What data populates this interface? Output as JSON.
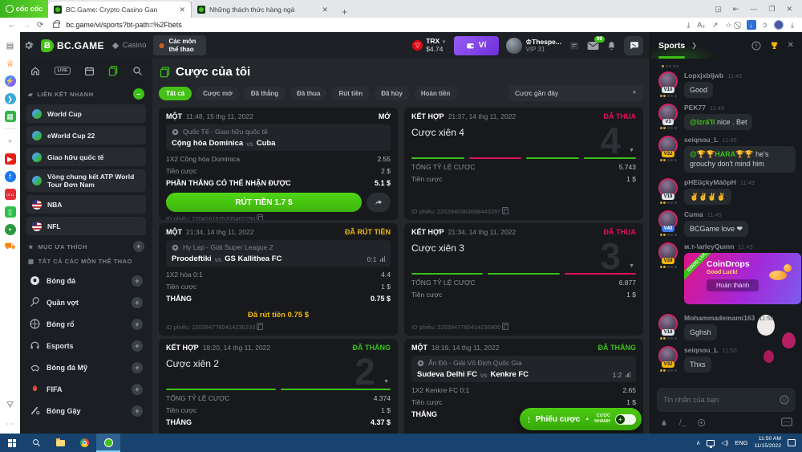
{
  "browser": {
    "brand": "cốc cốc",
    "tabs": [
      {
        "title": "BC.Game: Crypto Casino Gan"
      },
      {
        "title": "Những thách thức hàng ngà"
      }
    ],
    "url": "bc.game/vi/sports?bt-path=%2Fbets"
  },
  "header": {
    "logo": "BC.GAME",
    "nav_casino": "Casino",
    "nav_sports": "Các môn thể thao",
    "currency": "TRX",
    "balance": "$4.74",
    "wallet": "Ví",
    "username": "Thespe...",
    "vip": "VIP 31",
    "mail_badge": "99"
  },
  "sidebar": {
    "live_label": "LIVE",
    "quick_title": "LIÊN KẾT NHANH",
    "quick_links": [
      {
        "label": "World Cup"
      },
      {
        "label": "eWorld Cup 22"
      },
      {
        "label": "Giao hữu quốc tế"
      },
      {
        "label": "Vòng chung kết ATP World Tour Đơn Nam"
      },
      {
        "label": "NBA"
      },
      {
        "label": "NFL"
      }
    ],
    "favorites_title": "MỤC ƯA THÍCH",
    "all_sports_title": "TẤT CẢ CÁC MÔN THỂ THAO",
    "sports": [
      {
        "label": "Bóng đá"
      },
      {
        "label": "Quần vợt"
      },
      {
        "label": "Bóng rổ"
      },
      {
        "label": "Esports"
      },
      {
        "label": "Bóng đá Mỹ"
      },
      {
        "label": "FIFA"
      },
      {
        "label": "Bóng Gậy"
      }
    ]
  },
  "main": {
    "title": "Cược của tôi",
    "filters": [
      "Tất cả",
      "Cược mở",
      "Đã thắng",
      "Đã thua",
      "Rút tiền",
      "Đã hủy",
      "Hoàn tiền"
    ],
    "sort": "Cược gần đây",
    "cards": [
      {
        "type": "MỘT",
        "time": "11:48, 15 thg 11, 2022",
        "status": "MỞ",
        "status_color": "#ffffff",
        "league": "Quốc Tế - Giao hữu quốc tế",
        "team_a": "Cộng hòa Dominica",
        "vs": "vs",
        "team_b": "Cuba",
        "rows": [
          {
            "label": "1X2 Cộng hòa Dominica",
            "value": "2.55"
          },
          {
            "label": "Tiền cược",
            "value": "2 $"
          },
          {
            "label": "PHẦN THẮNG CÓ THỂ NHẬN ĐƯỢC",
            "value": "5.1 $"
          }
        ],
        "cashout": "RÚT TIỀN 1.7 $",
        "bet_id": "ID phiếu: 2204161525705402250"
      },
      {
        "type": "KẾT HỢP",
        "time": "21:37, 14 thg 11, 2022",
        "status": "ĐÃ THUA",
        "status_color": "#e2105b",
        "combo_title": "Cược xiên 4",
        "watermark": "4",
        "segments": [
          "win",
          "lose",
          "win",
          "win"
        ],
        "rows": [
          {
            "label": "TỔNG TỶ LỆ CƯỢC",
            "value": "5.743"
          },
          {
            "label": "Tiền cược",
            "value": "1 $"
          }
        ],
        "bet_id": "ID phiếu: 2203940363668443297"
      },
      {
        "type": "MỘT",
        "time": "21:34, 14 thg 11, 2022",
        "status": "ĐÃ RÚT TIỀN",
        "status_color": "#f0b90b",
        "league": "Hy Lạp - Giải Super League 2",
        "team_a": "Proodeftiki",
        "vs": "vs",
        "team_b": "GS Kallithea FC",
        "score": "0:1",
        "rows": [
          {
            "label": "1X2 hòa 0:1",
            "value": "4.4"
          },
          {
            "label": "Tiền cược",
            "value": "1 $"
          },
          {
            "label": "THẮNG",
            "value": "0.75 $"
          }
        ],
        "note": "Đã rút tiền 0.75 $",
        "bet_id": "ID phiếu: 2203947760414236193"
      },
      {
        "type": "KẾT HỢP",
        "time": "21:34, 14 thg 11, 2022",
        "status": "ĐÃ THUA",
        "status_color": "#e2105b",
        "combo_title": "Cược xiên 3",
        "watermark": "3",
        "segments": [
          "win",
          "win",
          "lose"
        ],
        "rows": [
          {
            "label": "TỔNG TỶ LỆ CƯỢC",
            "value": "6.877"
          },
          {
            "label": "Tiền cược",
            "value": "1 $"
          }
        ],
        "bet_id": "ID phiếu: 2203947760414236800"
      },
      {
        "type": "KẾT HỢP",
        "time": "18:20, 14 thg 11, 2022",
        "status": "ĐÃ THẮNG",
        "status_color": "#3bc117",
        "combo_title": "Cược xiên 2",
        "watermark": "2",
        "segments": [
          "win",
          "win"
        ],
        "rows": [
          {
            "label": "TỔNG TỶ LỆ CƯỢC",
            "value": "4.374"
          },
          {
            "label": "Tiền cược",
            "value": "1 $"
          },
          {
            "label": "THẮNG",
            "value": "4.37 $"
          }
        ]
      },
      {
        "type": "MỘT",
        "time": "18:19, 14 thg 11, 2022",
        "status": "ĐÃ THẮNG",
        "status_color": "#3bc117",
        "league": "Ấn Độ - Giải Vô Địch Quốc Gia",
        "team_a": "Sudeva Delhi FC",
        "vs": "vs",
        "team_b": "Kenkre FC",
        "score": "1:2",
        "rows": [
          {
            "label": "1X2 Kenkre FC 0:1",
            "value": "2.65"
          },
          {
            "label": "Tiền cược",
            "value": "1 $"
          },
          {
            "label": "THẮNG",
            "value": "2.65 $"
          }
        ]
      }
    ],
    "betslip": {
      "label": "Phiếu cược",
      "quick": "CƯỢC NHANH"
    }
  },
  "chat": {
    "title": "Sports",
    "messages": [
      {
        "user": "Lopxjxbljwb",
        "time": "11:45",
        "vip": "V10",
        "vip_bg": "#dfe3e8",
        "vip_fg": "#20262c",
        "text": "Good"
      },
      {
        "user": "PEK77",
        "time": "11:45",
        "vip": "V3",
        "vip_bg": "#dfe3e8",
        "vip_fg": "#20262c",
        "mention": "@Izrấ'll",
        "text": " nice . Bet"
      },
      {
        "user": "seiqnou_L",
        "time": "11:45",
        "vip": "V32",
        "vip_bg": "#f5b50f",
        "vip_fg": "#20262c",
        "mention": "@🏆🏆HARA🏆🏆",
        "text": " he's grouchy don't mind him"
      },
      {
        "user": "pHEūçkyMáŏpH",
        "time": "11:49",
        "vip": "V18",
        "vip_bg": "#dfe3e8",
        "vip_fg": "#20262c",
        "text": "✌✌✌✌"
      },
      {
        "user": "Cuma",
        "time": "11:49",
        "vip": "V40",
        "vip_bg": "#3e78e8",
        "vip_fg": "#ffffff",
        "text": "BCGame love ❤"
      },
      {
        "user": "м.ᴛ-\\arleyQuınn",
        "time": "11:49",
        "vip": "V39",
        "vip_bg": "#f5b50f",
        "vip_fg": "#20262c",
        "promo": {
          "ribbon": "GOOD LUCK",
          "title": "CoinDrops",
          "subtitle": "Good Luck!",
          "button": "Hoàn thành"
        }
      },
      {
        "user": "Mohammademami163",
        "time": "11:50",
        "vip": "V18",
        "vip_bg": "#dfe3e8",
        "vip_fg": "#20262c",
        "text": "Gghsh"
      },
      {
        "user": "seiqnou_L",
        "time": "11:50",
        "vip": "V32",
        "vip_bg": "#f5b50f",
        "vip_fg": "#20262c",
        "text": "Thxs"
      }
    ],
    "input_placeholder": "Tin nhắn của bạn"
  },
  "taskbar": {
    "lang": "ENG",
    "time": "11:50 AM",
    "date": "11/15/2022"
  }
}
